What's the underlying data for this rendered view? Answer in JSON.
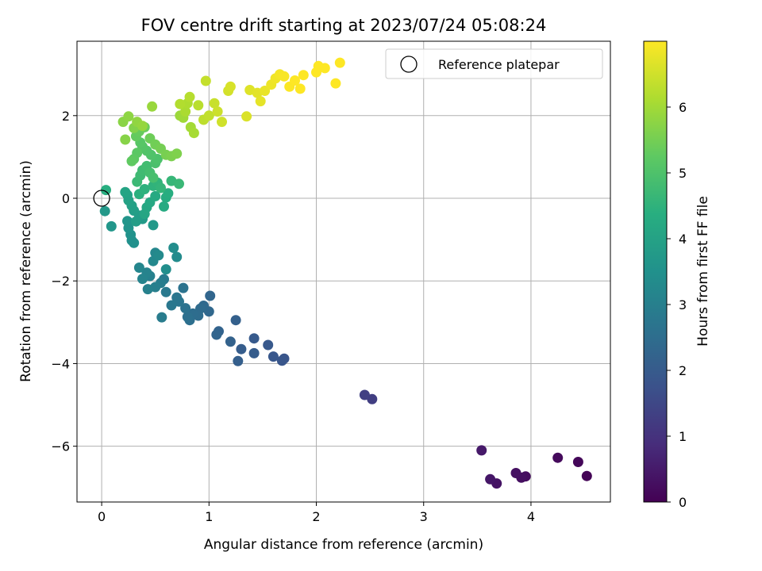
{
  "chart_data": {
    "type": "scatter",
    "title": "FOV centre drift starting at 2023/07/24 05:08:24",
    "xlabel": "Angular distance from reference (arcmin)",
    "ylabel": "Rotation from reference (arcmin)",
    "xlim": [
      -0.23,
      4.74
    ],
    "ylim": [
      -7.35,
      3.8
    ],
    "xticks": [
      0,
      1,
      2,
      3,
      4
    ],
    "yticks": [
      -6,
      -4,
      -2,
      0,
      2
    ],
    "grid": true,
    "legend": {
      "placement": "top-right",
      "entries": [
        "Reference platepar"
      ]
    },
    "reference_point": {
      "x": 0,
      "y": 0
    },
    "colorbar": {
      "label": "Hours from first FF file",
      "range": [
        0,
        7.0
      ],
      "ticks": [
        0,
        1,
        2,
        3,
        4,
        5,
        6
      ],
      "colormap": "viridis"
    },
    "points": [
      [
        4.52,
        -6.72,
        0.05
      ],
      [
        4.44,
        -6.38,
        0.12
      ],
      [
        4.25,
        -6.28,
        0.18
      ],
      [
        3.95,
        -6.73,
        0.22
      ],
      [
        3.91,
        -6.76,
        0.27
      ],
      [
        3.86,
        -6.65,
        0.3
      ],
      [
        3.68,
        -6.9,
        0.36
      ],
      [
        3.62,
        -6.8,
        0.42
      ],
      [
        3.54,
        -6.1,
        0.48
      ],
      [
        2.52,
        -4.86,
        1.28
      ],
      [
        2.45,
        -4.76,
        1.33
      ],
      [
        1.7,
        -3.88,
        1.82
      ],
      [
        1.68,
        -3.93,
        1.86
      ],
      [
        1.6,
        -3.83,
        1.9
      ],
      [
        1.55,
        -3.55,
        1.94
      ],
      [
        1.42,
        -3.39,
        1.98
      ],
      [
        1.42,
        -3.75,
        2.02
      ],
      [
        1.3,
        -3.65,
        2.06
      ],
      [
        1.27,
        -3.94,
        2.1
      ],
      [
        1.25,
        -2.95,
        2.14
      ],
      [
        1.2,
        -3.47,
        2.18
      ],
      [
        1.09,
        -3.22,
        2.22
      ],
      [
        1.07,
        -3.3,
        2.26
      ],
      [
        1.01,
        -2.36,
        2.3
      ],
      [
        1.0,
        -2.74,
        2.34
      ],
      [
        0.95,
        -2.6,
        2.38
      ],
      [
        0.92,
        -2.67,
        2.42
      ],
      [
        0.9,
        -2.84,
        2.46
      ],
      [
        0.85,
        -2.79,
        2.5
      ],
      [
        0.82,
        -2.95,
        2.54
      ],
      [
        0.8,
        -2.87,
        2.58
      ],
      [
        0.78,
        -2.66,
        2.62
      ],
      [
        0.76,
        -2.17,
        2.66
      ],
      [
        0.72,
        -2.5,
        2.7
      ],
      [
        0.7,
        -2.4,
        2.74
      ],
      [
        0.65,
        -2.59,
        2.78
      ],
      [
        0.6,
        -2.27,
        2.82
      ],
      [
        0.58,
        -1.96,
        2.86
      ],
      [
        0.56,
        -2.88,
        2.9
      ],
      [
        0.55,
        -2.05,
        2.94
      ],
      [
        0.5,
        -2.15,
        2.98
      ],
      [
        0.45,
        -1.88,
        3.02
      ],
      [
        0.43,
        -2.2,
        3.06
      ],
      [
        0.42,
        -1.8,
        3.1
      ],
      [
        0.38,
        -1.95,
        3.14
      ],
      [
        0.35,
        -1.68,
        3.18
      ],
      [
        0.5,
        -1.32,
        3.22
      ],
      [
        0.48,
        -1.52,
        3.26
      ],
      [
        0.53,
        -1.38,
        3.3
      ],
      [
        0.7,
        -1.42,
        3.34
      ],
      [
        0.67,
        -1.2,
        3.38
      ],
      [
        0.6,
        -1.72,
        3.42
      ],
      [
        0.28,
        -1.02,
        3.46
      ],
      [
        0.3,
        -1.08,
        3.5
      ],
      [
        0.27,
        -0.88,
        3.54
      ],
      [
        0.25,
        -0.72,
        3.58
      ],
      [
        0.24,
        -0.55,
        3.62
      ],
      [
        0.09,
        -0.68,
        3.66
      ],
      [
        0.03,
        -0.31,
        3.7
      ],
      [
        0.48,
        -0.65,
        3.74
      ],
      [
        0.38,
        -0.5,
        3.78
      ],
      [
        0.35,
        -0.42,
        3.82
      ],
      [
        0.32,
        -0.56,
        3.86
      ],
      [
        0.3,
        -0.3,
        3.9
      ],
      [
        0.28,
        -0.18,
        3.94
      ],
      [
        0.25,
        -0.05,
        3.98
      ],
      [
        0.24,
        0.08,
        4.02
      ],
      [
        0.22,
        0.15,
        4.06
      ],
      [
        0.4,
        -0.38,
        4.1
      ],
      [
        0.42,
        -0.22,
        4.14
      ],
      [
        0.45,
        -0.1,
        4.18
      ],
      [
        0.5,
        0.05,
        4.22
      ],
      [
        0.58,
        -0.2,
        4.26
      ],
      [
        0.6,
        0.02,
        4.3
      ],
      [
        0.62,
        0.12,
        4.34
      ],
      [
        0.04,
        0.2,
        4.38
      ],
      [
        0.35,
        0.1,
        4.42
      ],
      [
        0.4,
        0.22,
        4.46
      ],
      [
        0.48,
        0.3,
        4.5
      ],
      [
        0.52,
        0.38,
        4.54
      ],
      [
        0.55,
        0.25,
        4.58
      ],
      [
        0.65,
        0.42,
        4.62
      ],
      [
        0.72,
        0.35,
        4.66
      ],
      [
        0.33,
        0.4,
        4.7
      ],
      [
        0.36,
        0.55,
        4.74
      ],
      [
        0.38,
        0.68,
        4.78
      ],
      [
        0.42,
        0.78,
        4.82
      ],
      [
        0.45,
        0.62,
        4.86
      ],
      [
        0.48,
        0.5,
        4.9
      ],
      [
        0.5,
        0.85,
        4.94
      ],
      [
        0.52,
        0.95,
        4.98
      ],
      [
        0.46,
        1.05,
        5.02
      ],
      [
        0.42,
        1.15,
        5.06
      ],
      [
        0.38,
        1.25,
        5.1
      ],
      [
        0.36,
        1.35,
        5.14
      ],
      [
        0.33,
        1.1,
        5.18
      ],
      [
        0.3,
        0.95,
        5.22
      ],
      [
        0.28,
        0.9,
        5.26
      ],
      [
        0.32,
        1.5,
        5.3
      ],
      [
        0.35,
        1.62,
        5.34
      ],
      [
        0.4,
        1.72,
        5.38
      ],
      [
        0.45,
        1.45,
        5.42
      ],
      [
        0.5,
        1.3,
        5.46
      ],
      [
        0.55,
        1.2,
        5.5
      ],
      [
        0.6,
        1.05,
        5.54
      ],
      [
        0.65,
        1.02,
        5.58
      ],
      [
        0.7,
        1.08,
        5.62
      ],
      [
        0.3,
        1.7,
        5.66
      ],
      [
        0.22,
        1.42,
        5.7
      ],
      [
        0.2,
        1.85,
        5.74
      ],
      [
        0.25,
        1.98,
        5.78
      ],
      [
        0.33,
        1.85,
        5.82
      ],
      [
        0.38,
        1.75,
        5.86
      ],
      [
        0.47,
        2.22,
        5.9
      ],
      [
        0.73,
        2.0,
        5.94
      ],
      [
        0.76,
        1.95,
        5.98
      ],
      [
        0.83,
        1.72,
        6.02
      ],
      [
        0.86,
        1.58,
        6.06
      ],
      [
        0.78,
        2.1,
        6.1
      ],
      [
        0.8,
        2.3,
        6.14
      ],
      [
        0.73,
        2.28,
        6.18
      ],
      [
        0.82,
        2.45,
        6.22
      ],
      [
        0.9,
        2.25,
        6.26
      ],
      [
        0.95,
        1.9,
        6.3
      ],
      [
        1.0,
        2.0,
        6.34
      ],
      [
        0.97,
        2.84,
        6.38
      ],
      [
        1.05,
        2.3,
        6.42
      ],
      [
        1.08,
        2.1,
        6.46
      ],
      [
        1.12,
        1.85,
        6.5
      ],
      [
        1.18,
        2.6,
        6.54
      ],
      [
        1.2,
        2.7,
        6.58
      ],
      [
        1.35,
        1.98,
        6.62
      ],
      [
        1.38,
        2.62,
        6.66
      ],
      [
        1.45,
        2.55,
        6.7
      ],
      [
        1.48,
        2.35,
        6.74
      ],
      [
        1.52,
        2.6,
        6.78
      ],
      [
        1.58,
        2.75,
        6.82
      ],
      [
        1.62,
        2.9,
        6.86
      ],
      [
        1.66,
        3.0,
        6.9
      ],
      [
        1.7,
        2.95,
        6.94
      ],
      [
        1.75,
        2.7,
        6.98
      ],
      [
        1.8,
        2.85,
        7.0
      ],
      [
        1.85,
        2.65,
        7.0
      ],
      [
        1.88,
        2.98,
        7.0
      ],
      [
        2.0,
        3.05,
        7.0
      ],
      [
        2.02,
        3.2,
        7.0
      ],
      [
        2.08,
        3.15,
        7.0
      ],
      [
        2.18,
        2.78,
        7.0
      ],
      [
        2.22,
        3.28,
        7.0
      ]
    ]
  }
}
